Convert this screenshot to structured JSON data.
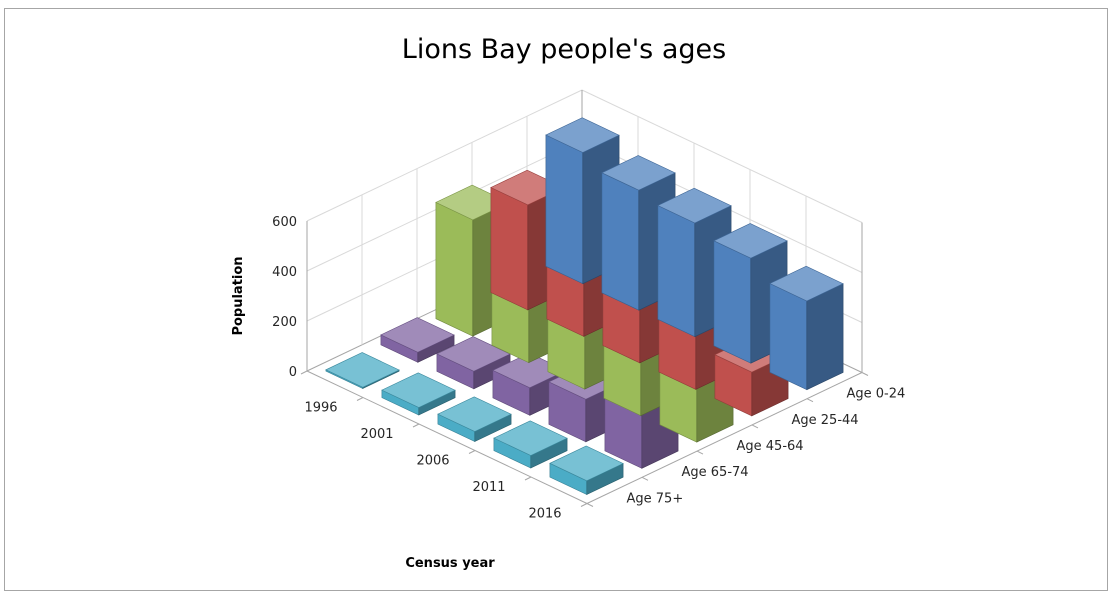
{
  "chart_data": {
    "type": "bar",
    "subtype": "3d-column",
    "title": "Lions Bay people's ages",
    "xlabel": "Census year",
    "ylabel": "Population",
    "categories": [
      "1996",
      "2001",
      "2006",
      "2011",
      "2016"
    ],
    "ylim": [
      0,
      600
    ],
    "yticks": [
      0,
      200,
      400,
      600
    ],
    "grid": true,
    "series": [
      {
        "name": "Age 0-24",
        "color": "#4f81bd",
        "values": [
          525,
          480,
          455,
          420,
          355
        ]
      },
      {
        "name": "Age 25-44",
        "color": "#c0504d",
        "values": [
          420,
          380,
          320,
          280,
          175
        ]
      },
      {
        "name": "Age 45-64",
        "color": "#9bbb59",
        "values": [
          465,
          510,
          570,
          530,
          560
        ]
      },
      {
        "name": "Age 65-74",
        "color": "#8064a2",
        "values": [
          40,
          70,
          110,
          170,
          215
        ]
      },
      {
        "name": "Age 75+",
        "color": "#4bacc6",
        "values": [
          5,
          30,
          40,
          50,
          55
        ]
      }
    ]
  }
}
